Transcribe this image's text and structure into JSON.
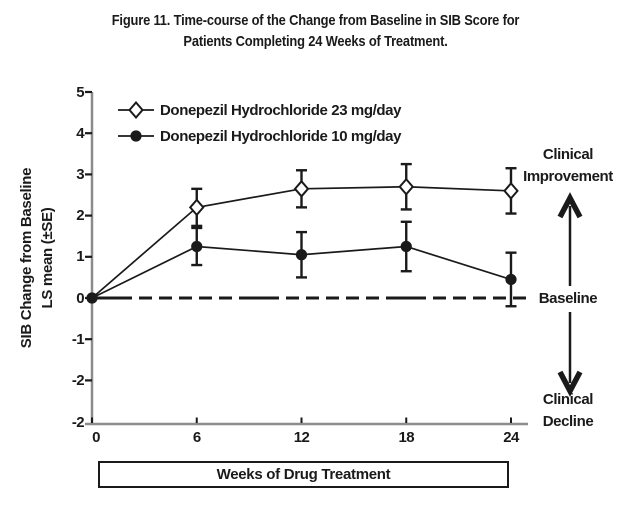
{
  "figure": {
    "title_line1": "Figure 11. Time-course of the Change from Baseline in SIB Score for",
    "title_line2": "Patients Completing 24 Weeks of Treatment."
  },
  "chart_data": {
    "type": "line",
    "x": [
      0,
      6,
      12,
      18,
      24
    ],
    "series": [
      {
        "name": "Donepezil Hydrochloride 23 mg/day",
        "marker": "open-diamond",
        "values": [
          0,
          2.2,
          2.65,
          2.7,
          2.6
        ],
        "se": [
          0,
          0.45,
          0.45,
          0.55,
          0.55
        ]
      },
      {
        "name": "Donepezil Hydrochloride 10 mg/day",
        "marker": "filled-circle",
        "values": [
          0,
          1.25,
          1.05,
          1.25,
          0.45
        ],
        "se": [
          0,
          0.45,
          0.55,
          0.6,
          0.65
        ]
      }
    ],
    "xlabel": "Weeks of Drug Treatment",
    "ylabel_line1": "SIB Change from Baseline",
    "ylabel_line2": "LS mean (±SE)",
    "x_ticks": [
      "0",
      "6",
      "12",
      "18",
      "24"
    ],
    "y_ticks": [
      {
        "value": 5,
        "label": "5"
      },
      {
        "value": 4,
        "label": "4"
      },
      {
        "value": 3,
        "label": "3"
      },
      {
        "value": 2,
        "label": "2"
      },
      {
        "value": 1,
        "label": "1"
      },
      {
        "value": 0,
        "label": "0"
      },
      {
        "value": -1,
        "label": "-1"
      },
      {
        "value": -2,
        "label": "-2"
      }
    ],
    "y_axis_bottom_label": "-2",
    "baseline_value": 0,
    "ylim_drawn": [
      -3,
      5
    ],
    "grid": false,
    "legend_position": "inside-top-left"
  },
  "annotations": {
    "improvement_line1": "Clinical",
    "improvement_line2": "Improvement",
    "baseline": "Baseline",
    "decline_line1": "Clinical",
    "decline_line2": "Decline"
  },
  "colors": {
    "ink": "#1a1a1a",
    "axis_gray": "#8c8c8c",
    "background": "#ffffff"
  }
}
